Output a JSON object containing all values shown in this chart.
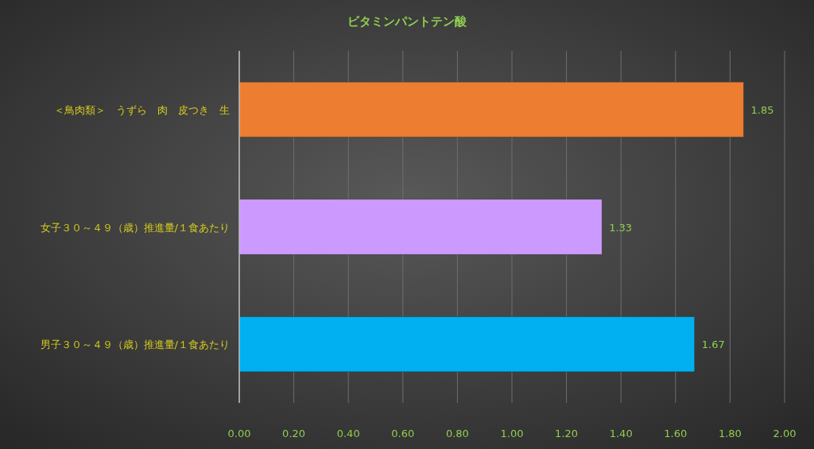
{
  "chart_data": {
    "type": "bar",
    "orientation": "horizontal",
    "title": "ビタミンパントテン酸",
    "categories": [
      "＜鳥肉類＞　うずら　肉　皮つき　生",
      "女子３０～４９（歳）推進量/１食あたり",
      "男子３０～４９（歳）推進量/１食あたり"
    ],
    "values": [
      1.85,
      1.33,
      1.67
    ],
    "colors": [
      "#ed7d31",
      "#cc99ff",
      "#00b0f0"
    ],
    "xlim": [
      0,
      2
    ],
    "xticks": [
      {
        "value": 0,
        "label": "0.00"
      },
      {
        "value": 0.2,
        "label": "0.20"
      },
      {
        "value": 0.4,
        "label": "0.40"
      },
      {
        "value": 0.6,
        "label": "0.60"
      },
      {
        "value": 0.8,
        "label": "0.80"
      },
      {
        "value": 1,
        "label": "1.00"
      },
      {
        "value": 1.2,
        "label": "1.20"
      },
      {
        "value": 1.4,
        "label": "1.40"
      },
      {
        "value": 1.6,
        "label": "1.60"
      },
      {
        "value": 1.8,
        "label": "1.80"
      },
      {
        "value": 2,
        "label": "2.00"
      }
    ],
    "grid": "x",
    "data_labels": true
  }
}
